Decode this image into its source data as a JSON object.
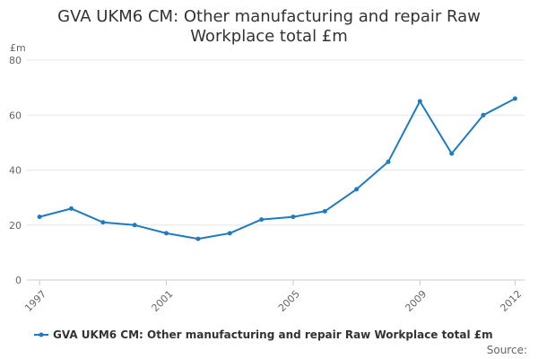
{
  "chart_data": {
    "type": "line",
    "title_lines": [
      "GVA UKM6 CM: Other manufacturing and repair Raw",
      "Workplace total £m"
    ],
    "ylabel": "£m",
    "xlabel": "",
    "ylim": [
      0,
      80
    ],
    "yticks": [
      0,
      20,
      40,
      60,
      80
    ],
    "x": [
      1997,
      1998,
      1999,
      2000,
      2001,
      2002,
      2003,
      2004,
      2005,
      2006,
      2007,
      2008,
      2009,
      2010,
      2011,
      2012
    ],
    "xtick_labels": [
      "1997",
      "2001",
      "2005",
      "2009",
      "2012"
    ],
    "grid": true,
    "legend_position": "bottom",
    "series": [
      {
        "name": "GVA UKM6 CM: Other manufacturing and repair Raw Workplace total £m",
        "color": "#1f7bbf",
        "values": [
          23,
          26,
          21,
          20,
          17,
          15,
          17,
          22,
          23,
          25,
          33,
          43,
          65,
          46,
          60,
          66
        ]
      }
    ]
  },
  "footer": {
    "source": "Source:"
  }
}
